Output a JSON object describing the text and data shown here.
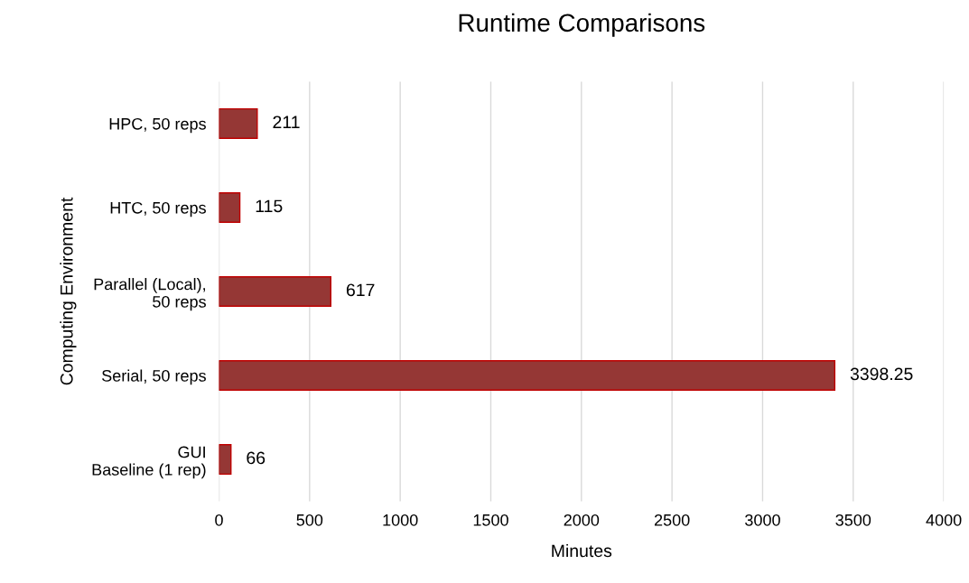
{
  "chart_data": {
    "type": "bar",
    "orientation": "horizontal",
    "title": "Runtime Comparisons",
    "xlabel": "Minutes",
    "ylabel": "Computing Environment",
    "categories": [
      "HPC, 50 reps",
      "HTC, 50 reps",
      "Parallel (Local),\n50 reps",
      "Serial, 50 reps",
      "GUI\nBaseline (1 rep)"
    ],
    "values": [
      211,
      115,
      617,
      3398.25,
      66
    ],
    "color": "#953735",
    "xlim": [
      0,
      4000
    ],
    "xticks": [
      0,
      500,
      1000,
      1500,
      2000,
      2500,
      3000,
      3500,
      4000
    ],
    "grid": "x",
    "data_labels": true,
    "legend": false
  }
}
